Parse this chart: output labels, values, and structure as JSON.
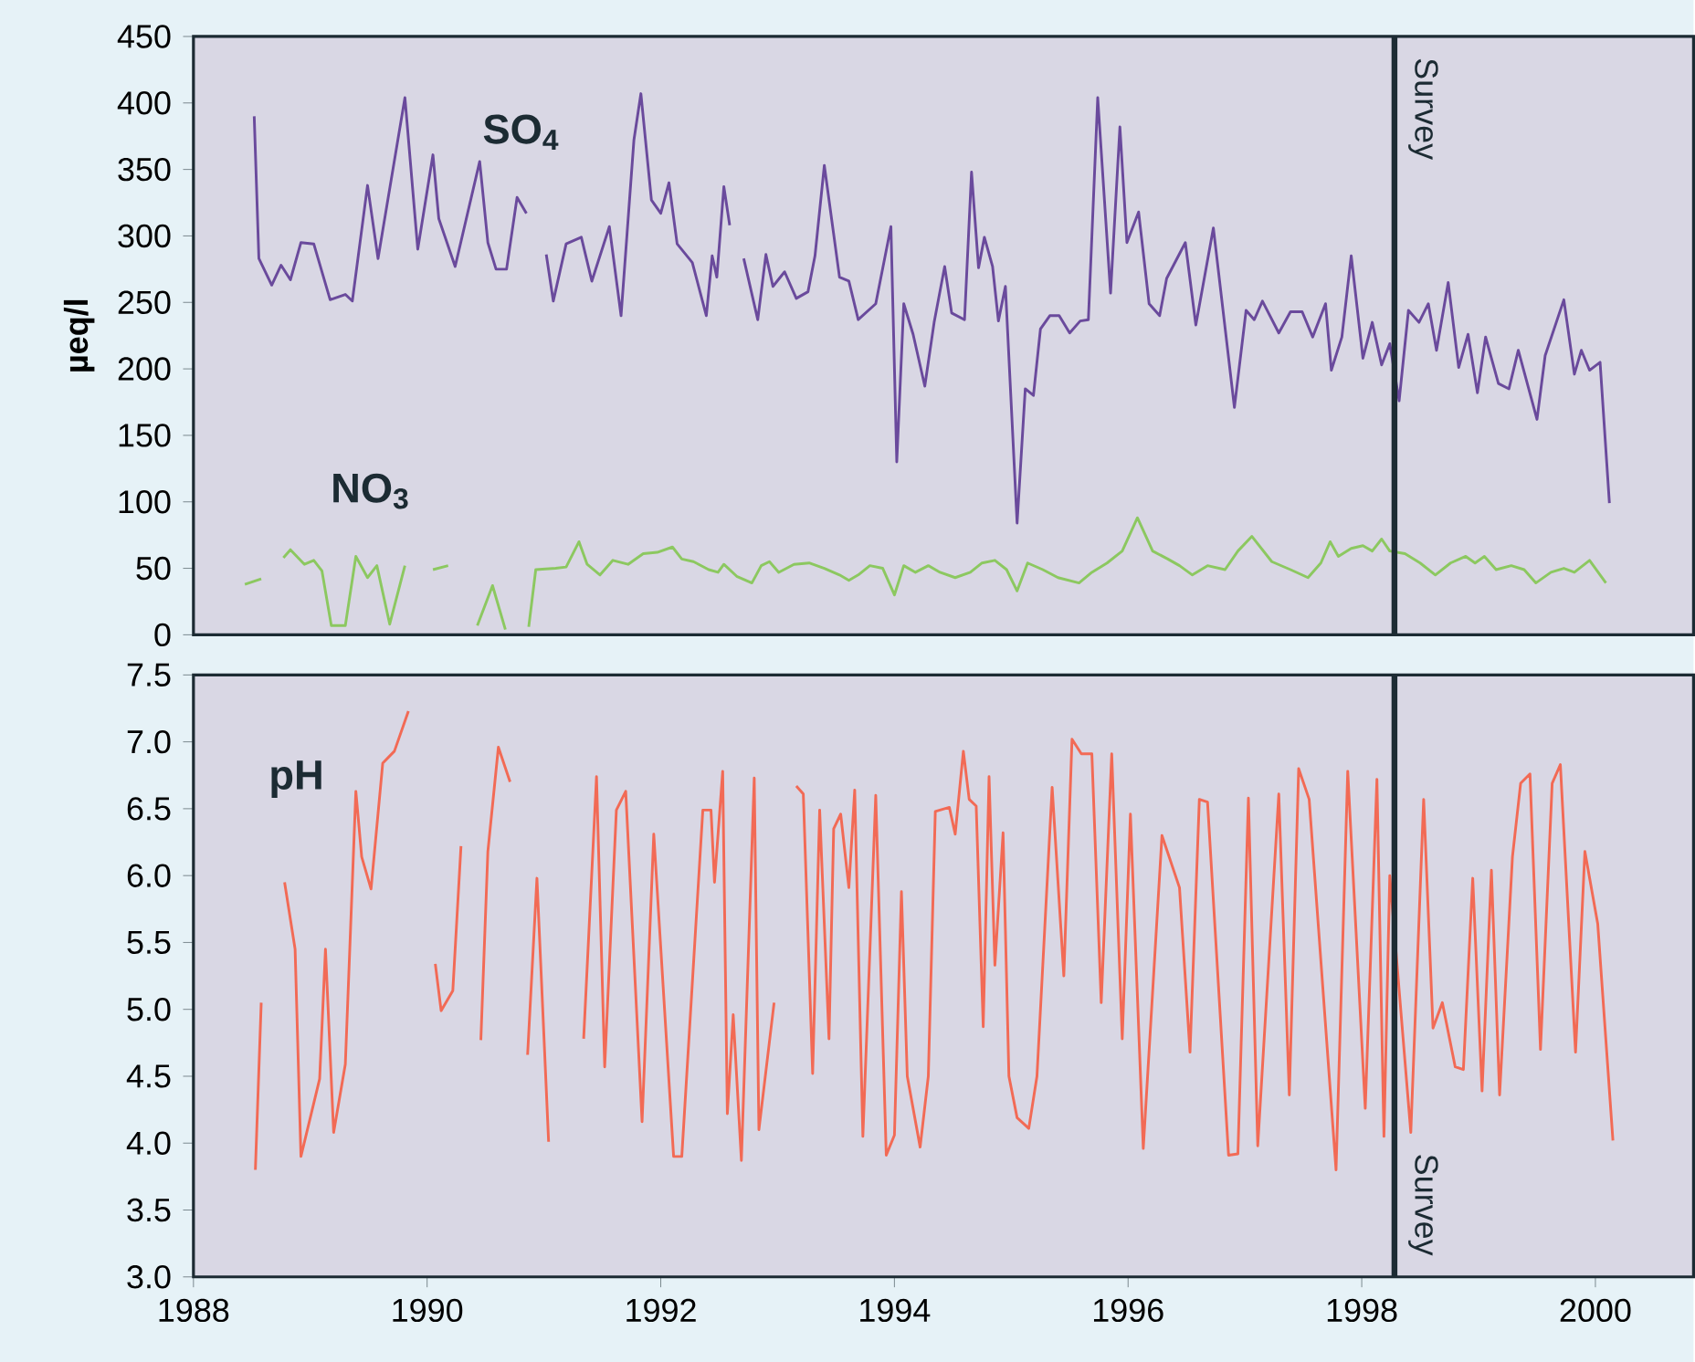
{
  "chart_data": [
    {
      "type": "line",
      "ylabel": "µeq/l",
      "xlim": [
        1988,
        2000.84
      ],
      "ylim": [
        0,
        450
      ],
      "yticks": [
        0,
        50,
        100,
        150,
        200,
        250,
        300,
        350,
        400,
        450
      ],
      "tick_labels": "y",
      "ref_lines": [
        {
          "axis": "x",
          "value": 1998.28,
          "label": "Survey",
          "color": "#1c2b33"
        }
      ],
      "series": [
        {
          "name": "SO$_{4}$",
          "color": "#6a4a9c",
          "x": [
            1988.52,
            1988.56,
            1988.67,
            1988.75,
            1988.83,
            1988.92,
            1989.03,
            1989.17,
            1989.3,
            1989.36,
            1989.49,
            1989.58,
            1989.81,
            1989.92,
            1990.05,
            1990.1,
            1990.24,
            1990.45,
            1990.52,
            1990.59,
            1990.68,
            1990.77,
            1990.85,
            1990.93,
            1991.02,
            1991.08,
            1991.19,
            1991.32,
            1991.41,
            1991.56,
            1991.66,
            1991.77,
            1991.83,
            1991.92,
            1992.0,
            1992.07,
            1992.14,
            1992.27,
            1992.39,
            1992.44,
            1992.48,
            1992.54,
            1992.59,
            1992.65,
            1992.71,
            1992.83,
            1992.9,
            1992.96,
            1993.06,
            1993.16,
            1993.26,
            1993.32,
            1993.4,
            1993.53,
            1993.61,
            1993.69,
            1993.84,
            1993.97,
            1994.02,
            1994.08,
            1994.16,
            1994.26,
            1994.34,
            1994.43,
            1994.49,
            1994.6,
            1994.66,
            1994.72,
            1994.77,
            1994.84,
            1994.89,
            1994.95,
            1995.05,
            1995.12,
            1995.19,
            1995.25,
            1995.33,
            1995.41,
            1995.5,
            1995.59,
            1995.66,
            1995.74,
            1995.85,
            1995.93,
            1995.99,
            1996.09,
            1996.18,
            1996.27,
            1996.33,
            1996.49,
            1996.58,
            1996.73,
            1996.91,
            1997.01,
            1997.08,
            1997.15,
            1997.29,
            1997.39,
            1997.49,
            1997.58,
            1997.69,
            1997.74,
            1997.83,
            1997.91,
            1998.01,
            1998.09,
            1998.17,
            1998.24,
            1998.32,
            1998.4,
            1998.49,
            1998.57,
            1998.64,
            1998.74,
            1998.83,
            1998.91,
            1998.99,
            1999.06,
            1999.17,
            1999.26,
            1999.34,
            1999.5,
            1999.57,
            1999.73,
            1999.82,
            1999.88,
            1999.95,
            2000.04,
            2000.12
          ],
          "values": [
            390,
            283,
            263,
            278,
            267,
            295,
            294,
            252,
            256,
            251,
            338,
            283,
            404,
            290,
            361,
            313,
            277,
            356,
            295,
            275,
            275,
            329,
            317,
            null,
            286,
            251,
            294,
            299,
            266,
            307,
            240,
            372,
            407,
            327,
            317,
            340,
            294,
            280,
            240,
            285,
            269,
            337,
            308,
            null,
            283,
            237,
            286,
            262,
            273,
            253,
            258,
            285,
            353,
            269,
            266,
            237,
            249,
            307,
            130,
            249,
            226,
            187,
            235,
            277,
            242,
            237,
            348,
            276,
            299,
            277,
            236,
            262,
            84,
            185,
            180,
            230,
            240,
            240,
            227,
            236,
            237,
            404,
            257,
            382,
            295,
            318,
            249,
            240,
            268,
            295,
            233,
            306,
            171,
            244,
            237,
            251,
            227,
            243,
            243,
            224,
            249,
            199,
            224,
            285,
            208,
            235,
            203,
            219,
            176,
            244,
            235,
            249,
            214,
            265,
            201,
            226,
            182,
            224,
            189,
            185,
            214,
            162,
            210,
            252,
            196,
            214,
            199,
            205,
            99
          ]
        },
        {
          "name": "NO$_{3}$",
          "color": "#8cc860",
          "x": [
            1988.44,
            1988.58,
            1988.65,
            1988.77,
            1988.83,
            1988.95,
            1989.03,
            1989.1,
            1989.18,
            1989.3,
            1989.39,
            1989.49,
            1989.57,
            1989.68,
            1989.81,
            1989.9,
            1990.05,
            1990.18,
            1990.3,
            1990.43,
            1990.56,
            1990.67,
            1990.77,
            1990.87,
            1990.93,
            1991.1,
            1991.19,
            1991.3,
            1991.37,
            1991.48,
            1991.59,
            1991.72,
            1991.85,
            1991.97,
            1992.1,
            1992.18,
            1992.28,
            1992.41,
            1992.49,
            1992.54,
            1992.65,
            1992.78,
            1992.86,
            1992.93,
            1993.01,
            1993.14,
            1993.27,
            1993.4,
            1993.53,
            1993.61,
            1993.69,
            1993.79,
            1993.9,
            1994.0,
            1994.08,
            1994.18,
            1994.29,
            1994.39,
            1994.52,
            1994.65,
            1994.75,
            1994.86,
            1994.96,
            1995.05,
            1995.14,
            1995.27,
            1995.4,
            1995.58,
            1995.69,
            1995.82,
            1995.95,
            1996.08,
            1996.21,
            1996.34,
            1996.44,
            1996.55,
            1996.68,
            1996.83,
            1996.94,
            1997.06,
            1997.23,
            1997.39,
            1997.54,
            1997.65,
            1997.73,
            1997.8,
            1997.91,
            1998.01,
            1998.09,
            1998.17,
            1998.24,
            1998.37,
            1998.5,
            1998.63,
            1998.76,
            1998.89,
            1998.97,
            1999.05,
            1999.15,
            1999.28,
            1999.39,
            1999.49,
            1999.62,
            1999.73,
            1999.82,
            1999.95,
            2000.09
          ],
          "values": [
            38,
            42,
            null,
            58,
            64,
            53,
            56,
            48,
            7,
            7,
            59,
            43,
            52,
            8,
            52,
            null,
            49,
            52,
            null,
            7,
            37,
            4,
            null,
            6,
            49,
            50,
            51,
            70,
            53,
            45,
            56,
            53,
            61,
            62,
            66,
            57,
            55,
            49,
            47,
            53,
            44,
            39,
            52,
            55,
            47,
            53,
            54,
            50,
            45,
            41,
            45,
            52,
            50,
            30,
            52,
            47,
            52,
            47,
            43,
            47,
            54,
            56,
            49,
            33,
            54,
            49,
            43,
            39,
            47,
            54,
            63,
            88,
            63,
            57,
            52,
            45,
            52,
            49,
            63,
            74,
            55,
            49,
            43,
            54,
            70,
            59,
            65,
            67,
            63,
            72,
            63,
            61,
            54,
            45,
            54,
            59,
            54,
            59,
            49,
            52,
            49,
            39,
            47,
            50,
            47,
            56,
            39
          ]
        }
      ]
    },
    {
      "type": "line",
      "xlim": [
        1988,
        2000.84
      ],
      "ylim": [
        3,
        7.5
      ],
      "xticks": [
        1988,
        1990,
        1992,
        1994,
        1996,
        1998,
        2000
      ],
      "annotations": [
        "pH"
      ],
      "yticks": [
        {
          "value": 3,
          "label": "3.0"
        },
        {
          "value": 3.5,
          "label": "3.5"
        },
        {
          "value": 4,
          "label": "4.0"
        },
        {
          "value": 4.5,
          "label": "4.5"
        },
        {
          "value": 5,
          "label": "5.0"
        },
        {
          "value": 5.5,
          "label": "5.5"
        },
        {
          "value": 6,
          "label": "6.0"
        },
        {
          "value": 6.5,
          "label": "6.5"
        },
        {
          "value": 7,
          "label": "7.0"
        },
        {
          "value": 7.5,
          "label": "7.5"
        }
      ],
      "ref_lines": [
        {
          "axis": "x",
          "value": 1998.28,
          "label": "Survey",
          "color": "#1c2b33"
        }
      ],
      "series": [
        {
          "color": "#f26a55",
          "x": [
            1988.53,
            1988.58,
            1988.68,
            1988.78,
            1988.87,
            1988.92,
            1989.08,
            1989.13,
            1989.2,
            1989.3,
            1989.39,
            1989.44,
            1989.52,
            1989.62,
            1989.72,
            1989.84,
            1989.95,
            1990.07,
            1990.12,
            1990.22,
            1990.29,
            1990.38,
            1990.46,
            1990.52,
            1990.61,
            1990.71,
            1990.78,
            1990.86,
            1990.94,
            1991.04,
            1991.2,
            1991.34,
            1991.45,
            1991.52,
            1991.62,
            1991.7,
            1991.84,
            1991.94,
            1992.11,
            1992.18,
            1992.36,
            1992.43,
            1992.46,
            1992.53,
            1992.57,
            1992.62,
            1992.69,
            1992.8,
            1992.84,
            1992.97,
            1993.06,
            1993.16,
            1993.22,
            1993.3,
            1993.36,
            1993.44,
            1993.48,
            1993.54,
            1993.61,
            1993.66,
            1993.73,
            1993.84,
            1993.93,
            1994.0,
            1994.06,
            1994.11,
            1994.22,
            1994.29,
            1994.35,
            1994.47,
            1994.52,
            1994.59,
            1994.64,
            1994.7,
            1994.76,
            1994.81,
            1994.86,
            1994.93,
            1994.98,
            1995.05,
            1995.15,
            1995.22,
            1995.35,
            1995.45,
            1995.52,
            1995.6,
            1995.69,
            1995.77,
            1995.86,
            1995.95,
            1996.02,
            1996.13,
            1996.29,
            1996.44,
            1996.53,
            1996.61,
            1996.68,
            1996.86,
            1996.94,
            1997.03,
            1997.11,
            1997.29,
            1997.38,
            1997.46,
            1997.55,
            1997.78,
            1997.88,
            1998.03,
            1998.13,
            1998.19,
            1998.24,
            1998.42,
            1998.53,
            1998.61,
            1998.69,
            1998.8,
            1998.87,
            1998.95,
            1999.03,
            1999.11,
            1999.18,
            1999.29,
            1999.36,
            1999.44,
            1999.53,
            1999.63,
            1999.7,
            1999.83,
            1999.91,
            2000.02,
            2000.15
          ],
          "values": [
            3.8,
            5.05,
            null,
            5.95,
            5.45,
            3.9,
            4.48,
            5.45,
            4.08,
            4.59,
            6.63,
            6.14,
            5.9,
            6.84,
            6.93,
            7.23,
            null,
            5.34,
            4.99,
            5.14,
            6.22,
            null,
            4.77,
            6.18,
            6.96,
            6.7,
            null,
            4.66,
            5.98,
            4.01,
            null,
            4.78,
            6.74,
            4.57,
            6.49,
            6.63,
            4.16,
            6.31,
            3.9,
            3.9,
            6.49,
            6.49,
            5.95,
            6.78,
            4.22,
            4.96,
            3.87,
            6.73,
            4.1,
            5.05,
            null,
            6.67,
            6.61,
            4.52,
            6.49,
            4.78,
            6.35,
            6.46,
            5.91,
            6.64,
            4.05,
            6.6,
            3.91,
            4.06,
            5.88,
            4.5,
            3.97,
            4.5,
            6.48,
            6.51,
            6.31,
            6.93,
            6.57,
            6.52,
            4.87,
            6.74,
            5.33,
            6.32,
            4.5,
            4.19,
            4.11,
            4.5,
            6.66,
            5.25,
            7.02,
            6.91,
            6.91,
            5.05,
            6.91,
            4.78,
            6.46,
            3.96,
            6.3,
            5.91,
            4.68,
            6.57,
            6.55,
            3.91,
            3.92,
            6.58,
            3.98,
            6.61,
            4.36,
            6.8,
            6.57,
            3.8,
            6.78,
            4.26,
            6.72,
            4.05,
            6.0,
            4.08,
            6.57,
            4.86,
            5.05,
            4.57,
            4.55,
            5.98,
            4.39,
            6.04,
            4.36,
            6.14,
            6.69,
            6.76,
            4.7,
            6.69,
            6.83,
            4.68,
            6.18,
            5.64,
            4.02
          ]
        }
      ]
    }
  ]
}
